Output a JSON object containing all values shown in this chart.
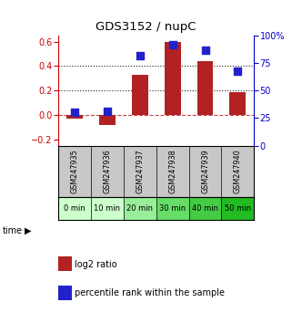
{
  "title": "GDS3152 / nupC",
  "samples": [
    "GSM247935",
    "GSM247936",
    "GSM247937",
    "GSM247938",
    "GSM247939",
    "GSM247940"
  ],
  "time_labels": [
    "0 min",
    "10 min",
    "20 min",
    "30 min",
    "40 min",
    "50 min"
  ],
  "log2_ratio": [
    -0.03,
    -0.08,
    0.33,
    0.6,
    0.44,
    0.19
  ],
  "percentile_rank": [
    30,
    31,
    82,
    92,
    87,
    68
  ],
  "ylim_left": [
    -0.25,
    0.65
  ],
  "ylim_right": [
    0,
    100
  ],
  "yticks_left": [
    -0.2,
    0.0,
    0.2,
    0.4,
    0.6
  ],
  "yticks_right": [
    0,
    25,
    50,
    75,
    100
  ],
  "bar_color": "#B22222",
  "dot_color": "#2222CC",
  "zero_line_color": "#CC4444",
  "dotted_line_color": "#222222",
  "bg_color": "#FFFFFF",
  "gsm_bg_color": "#C8C8C8",
  "time_bg_colors": [
    "#CCFFCC",
    "#CCFFCC",
    "#99EE99",
    "#66DD66",
    "#44CC44",
    "#22BB22"
  ],
  "bar_width": 0.5
}
